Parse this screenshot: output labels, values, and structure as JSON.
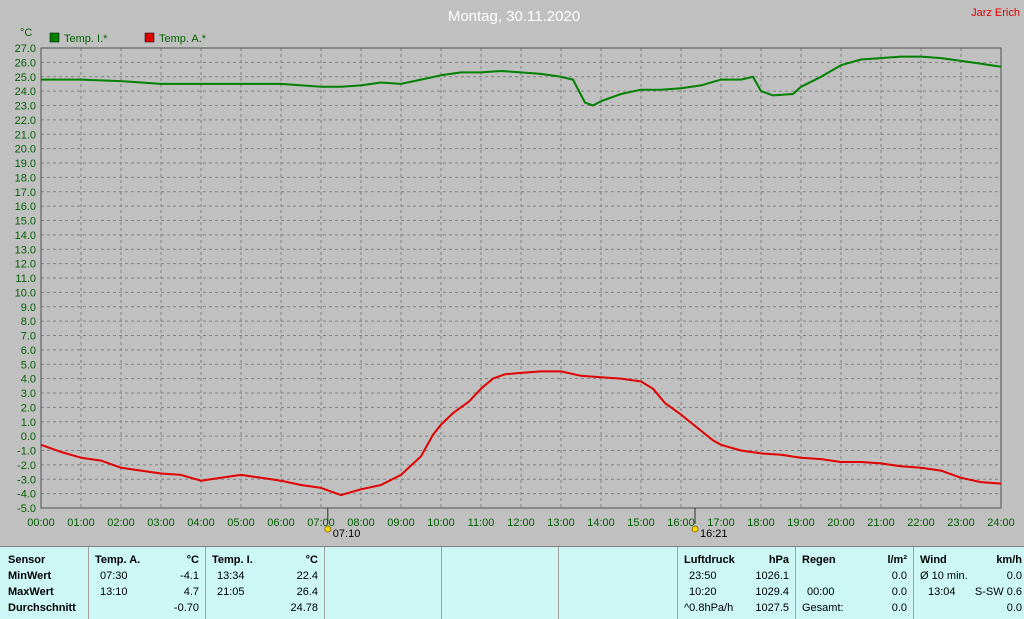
{
  "title": "Montag, 30.11.2020",
  "author": "Jarz Erich",
  "unit_label": "°C",
  "colors": {
    "indoor": "#008000",
    "outdoor": "#e00000",
    "title": "#ffffff",
    "author": "#e00000"
  },
  "chart_data": {
    "type": "line",
    "title": "Montag, 30.11.2020",
    "ylabel": "°C",
    "ylim": [
      -5.0,
      27.0
    ],
    "y_ticks": [
      "27.0",
      "26.0",
      "25.0",
      "24.0",
      "23.0",
      "22.0",
      "21.0",
      "20.0",
      "19.0",
      "18.0",
      "17.0",
      "16.0",
      "15.0",
      "14.0",
      "13.0",
      "12.0",
      "11.0",
      "10.0",
      "9.0",
      "8.0",
      "7.0",
      "6.0",
      "5.0",
      "4.0",
      "3.0",
      "2.0",
      "1.0",
      "0.0",
      "-1.0",
      "-2.0",
      "-3.0",
      "-4.0",
      "-5.0"
    ],
    "x_ticks": [
      "00:00",
      "01:00",
      "02:00",
      "03:00",
      "04:00",
      "05:00",
      "06:00",
      "07:00",
      "08:00",
      "09:00",
      "10:00",
      "11:00",
      "12:00",
      "13:00",
      "14:00",
      "15:00",
      "16:00",
      "17:00",
      "18:00",
      "19:00",
      "20:00",
      "21:00",
      "22:00",
      "23:00",
      "24:00"
    ],
    "grid": true,
    "legend": "top-left",
    "markers": [
      {
        "x": 7.17,
        "label": "07:10"
      },
      {
        "x": 16.35,
        "label": "16:21"
      }
    ],
    "series": [
      {
        "name": "Temp. I.*",
        "color": "#008000",
        "x": [
          0,
          1,
          2,
          3,
          4,
          5,
          6,
          7,
          7.5,
          8,
          8.5,
          9,
          9.5,
          10,
          10.5,
          11,
          11.5,
          12,
          12.5,
          13,
          13.3,
          13.6,
          13.8,
          14,
          14.5,
          15,
          15.5,
          16,
          16.5,
          17,
          17.5,
          17.8,
          18,
          18.3,
          18.8,
          19,
          19.5,
          20,
          20.5,
          21,
          21.5,
          22,
          22.5,
          23,
          23.5,
          24
        ],
        "y": [
          24.8,
          24.8,
          24.7,
          24.5,
          24.5,
          24.5,
          24.5,
          24.3,
          24.3,
          24.4,
          24.6,
          24.5,
          24.8,
          25.1,
          25.3,
          25.3,
          25.4,
          25.3,
          25.2,
          25.0,
          24.8,
          23.2,
          23.0,
          23.3,
          23.8,
          24.1,
          24.1,
          24.2,
          24.4,
          24.8,
          24.8,
          25.0,
          24.0,
          23.7,
          23.8,
          24.3,
          25.0,
          25.8,
          26.2,
          26.3,
          26.4,
          26.4,
          26.3,
          26.1,
          25.9,
          25.7
        ]
      },
      {
        "name": "Temp. A.*",
        "color": "#e00000",
        "x": [
          0,
          0.5,
          1,
          1.5,
          2,
          2.5,
          3,
          3.5,
          4,
          4.5,
          5,
          5.5,
          6,
          6.5,
          7,
          7.5,
          8,
          8.5,
          9,
          9.5,
          9.8,
          10,
          10.3,
          10.7,
          11,
          11.3,
          11.6,
          12,
          12.5,
          13,
          13.5,
          14,
          14.5,
          15,
          15.3,
          15.6,
          16,
          16.4,
          16.8,
          17,
          17.5,
          18,
          18.5,
          19,
          19.5,
          20,
          20.5,
          21,
          21.5,
          22,
          22.5,
          23,
          23.5,
          24
        ],
        "y": [
          -0.6,
          -1.1,
          -1.5,
          -1.7,
          -2.2,
          -2.4,
          -2.6,
          -2.7,
          -3.1,
          -2.9,
          -2.7,
          -2.9,
          -3.1,
          -3.4,
          -3.6,
          -4.1,
          -3.7,
          -3.4,
          -2.7,
          -1.4,
          0.1,
          0.8,
          1.6,
          2.4,
          3.3,
          4.0,
          4.3,
          4.4,
          4.5,
          4.5,
          4.2,
          4.1,
          4.0,
          3.8,
          3.3,
          2.3,
          1.5,
          0.6,
          -0.3,
          -0.6,
          -1.0,
          -1.2,
          -1.3,
          -1.5,
          -1.6,
          -1.8,
          -1.8,
          -1.9,
          -2.1,
          -2.2,
          -2.4,
          -2.9,
          -3.2,
          -3.3
        ]
      }
    ]
  },
  "stats": {
    "sensor_header": "Sensor",
    "row_labels": [
      "MinWert",
      "MaxWert",
      "Durchschnitt"
    ],
    "temp_a": {
      "header": "Temp. A.",
      "unit": "°C",
      "min_time": "07:30",
      "min_val": "-4.1",
      "max_time": "13:10",
      "max_val": "4.7",
      "avg": "-0.70"
    },
    "temp_i": {
      "header": "Temp. I.",
      "unit": "°C",
      "min_time": "13:34",
      "min_val": "22.4",
      "max_time": "21:05",
      "max_val": "26.4",
      "avg": "24.78"
    },
    "pressure": {
      "header": "Luftdruck",
      "unit": "hPa",
      "r1_time": "23:50",
      "r1_val": "1026.1",
      "r2_time": "10:20",
      "r2_val": "1029.4",
      "r3_label": "^0.8hPa/h",
      "r3_val": "1027.5"
    },
    "rain": {
      "header": "Regen",
      "unit": "l/m²",
      "r2_time": "00:00",
      "r2_val": "0.0",
      "r1_val": "0.0",
      "r3_label": "Gesamt:",
      "r3_val": "0.0"
    },
    "wind": {
      "header": "Wind",
      "unit": "km/h",
      "r1_label": "Ø 10 min.",
      "r1_val": "0.0",
      "r2_time": "13:04",
      "r2_val": "S-SW 0.6",
      "r3_val": "0.0"
    }
  }
}
